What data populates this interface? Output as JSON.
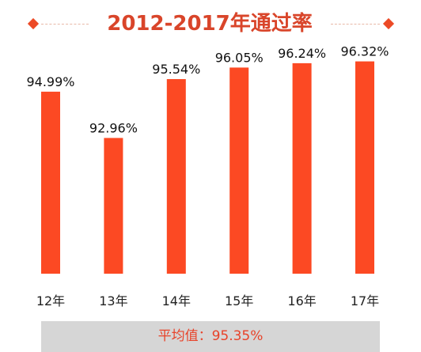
{
  "colors": {
    "bar": "#fc4923",
    "title": "#d9452a",
    "accent": "#ec4a26",
    "avg_bg": "#d6d6d6",
    "avg_text": "#e8432a"
  },
  "chart_data": {
    "type": "bar",
    "title": "2012-2017年通过率",
    "categories": [
      "12年",
      "13年",
      "14年",
      "15年",
      "16年",
      "17年"
    ],
    "values": [
      94.99,
      92.96,
      95.54,
      96.05,
      96.24,
      96.32
    ],
    "data_labels": [
      "94.99%",
      "92.96%",
      "95.54%",
      "96.05%",
      "96.24%",
      "96.32%"
    ],
    "xlabel": "",
    "ylabel": "",
    "ylim": [
      87,
      97
    ],
    "grid": false,
    "legend": "none"
  },
  "summary": {
    "average_label": "平均值：95.35%"
  }
}
